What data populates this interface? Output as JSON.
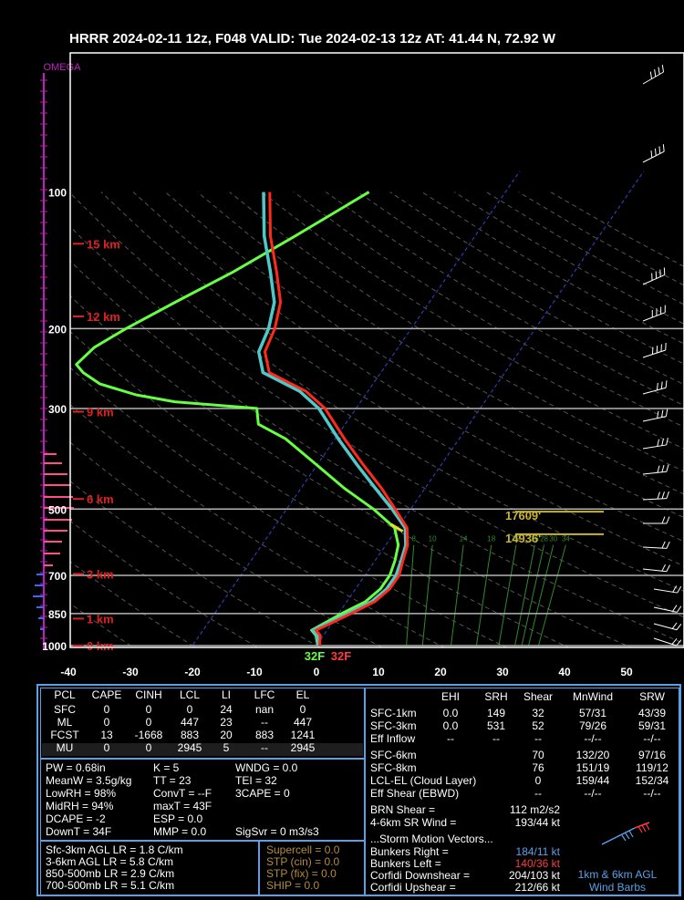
{
  "title": "HRRR 2024-02-11 12z, F048  VALID: Tue 2024-02-13 12z  AT: 41.44 N, 72.92 W",
  "chart_data": {
    "type": "skew-t",
    "omega_label": "OMEGA",
    "pressure_ticks": [
      100,
      200,
      300,
      500,
      700,
      850,
      1000
    ],
    "temp_ticks": [
      -40,
      -30,
      -20,
      -10,
      0,
      10,
      20,
      30,
      40,
      50
    ],
    "height_labels": [
      "15 km",
      "12 km",
      "9 km",
      "6 km",
      "3 km",
      "1 km",
      "0 km"
    ],
    "height_pressures": [
      130,
      188,
      305,
      475,
      695,
      872,
      1000
    ],
    "temperature": [
      [
        1000,
        0.5
      ],
      [
        950,
        -0.5
      ],
      [
        925,
        -1.8
      ],
      [
        900,
        -0.5
      ],
      [
        850,
        2.0
      ],
      [
        800,
        4.5
      ],
      [
        750,
        5.5
      ],
      [
        700,
        5.5
      ],
      [
        650,
        4.5
      ],
      [
        600,
        3.5
      ],
      [
        550,
        1.5
      ],
      [
        500,
        -2.5
      ],
      [
        450,
        -7
      ],
      [
        400,
        -12.5
      ],
      [
        350,
        -18.5
      ],
      [
        300,
        -25
      ],
      [
        275,
        -30
      ],
      [
        250,
        -38
      ],
      [
        225,
        -41
      ],
      [
        200,
        -42
      ],
      [
        175,
        -44
      ],
      [
        150,
        -48
      ],
      [
        125,
        -53
      ],
      [
        100,
        -58
      ]
    ],
    "dewpoint": [
      [
        1000,
        0.3
      ],
      [
        950,
        -1.0
      ],
      [
        925,
        -2.3
      ],
      [
        900,
        -1.0
      ],
      [
        850,
        1.5
      ],
      [
        800,
        4.0
      ],
      [
        750,
        5.0
      ],
      [
        700,
        5.0
      ],
      [
        650,
        4.2
      ],
      [
        600,
        3.2
      ],
      [
        550,
        1.2
      ],
      [
        500,
        -3
      ],
      [
        450,
        -8
      ],
      [
        400,
        -13.5
      ],
      [
        350,
        -19.5
      ],
      [
        300,
        -26
      ],
      [
        275,
        -31
      ],
      [
        250,
        -39
      ],
      [
        225,
        -42
      ],
      [
        200,
        -43
      ],
      [
        175,
        -45
      ],
      [
        150,
        -49
      ],
      [
        125,
        -54
      ],
      [
        100,
        -59
      ]
    ],
    "wetbulb": [
      [
        1000,
        0.2
      ],
      [
        950,
        -1.2
      ],
      [
        925,
        -2.5
      ],
      [
        900,
        -1.5
      ],
      [
        850,
        0.5
      ],
      [
        800,
        3.0
      ],
      [
        750,
        4.0
      ],
      [
        700,
        4.0
      ],
      [
        650,
        3.2
      ],
      [
        600,
        2.0
      ],
      [
        550,
        -0.5
      ],
      [
        500,
        -6
      ],
      [
        450,
        -13
      ],
      [
        400,
        -20
      ],
      [
        350,
        -28
      ],
      [
        325,
        -34
      ],
      [
        300,
        -36
      ],
      [
        290,
        -50
      ],
      [
        280,
        -57
      ],
      [
        265,
        -64
      ],
      [
        250,
        -68
      ],
      [
        240,
        -70
      ],
      [
        220,
        -69
      ],
      [
        200,
        -66
      ],
      [
        175,
        -61
      ],
      [
        150,
        -55
      ],
      [
        125,
        -49
      ],
      [
        100,
        -42
      ]
    ],
    "freezing_labels": {
      "wetbulb": "32F",
      "temp": "32F"
    },
    "height_markers": [
      {
        "label": "17609'",
        "p": 502
      },
      {
        "label": "14936'",
        "p": 563
      }
    ],
    "mixing_ratios": [
      "8",
      "10",
      "14",
      "18",
      "22",
      "26",
      "28",
      "30",
      "34"
    ],
    "colors": {
      "temperature": "#ff2a1a",
      "dewpoint": "#50c8c8",
      "wetbulb": "#66ff44",
      "isobar": "#b4b4b4",
      "dry_adiabat": "#555555",
      "isotherm_zero": "#2c3ea8",
      "height": "#e02020",
      "omega": "#c020c0",
      "yellow": "#c8b432",
      "mixing": "#2f8a2f"
    }
  },
  "params": {
    "headers": [
      "PCL",
      "CAPE",
      "CINH",
      "LCL",
      "LI",
      "LFC",
      "EL"
    ],
    "rows": [
      [
        "SFC",
        "0",
        "0",
        "0",
        "24",
        "nan",
        "0"
      ],
      [
        "ML",
        "0",
        "0",
        "447",
        "23",
        "--",
        "447"
      ],
      [
        "FCST",
        "13",
        "-1668",
        "883",
        "20",
        "883",
        "1241"
      ],
      [
        "MU",
        "0",
        "0",
        "2945",
        "5",
        "--",
        "2945"
      ]
    ],
    "col1": [
      "PW = 0.68in",
      "MeanW = 3.5g/kg",
      "LowRH = 98%",
      "MidRH = 94%",
      "DCAPE = -2",
      "DownT = 34F"
    ],
    "col2": [
      "K = 5",
      "TT = 23",
      "ConvT = --F",
      "maxT = 43F",
      "ESP = 0.0",
      "MMP = 0.0"
    ],
    "col3": [
      "WNDG = 0.0",
      "TEI = 32",
      "3CAPE = 0",
      "",
      "",
      "SigSvr = 0 m3/s3"
    ],
    "lapse": [
      "Sfc-3km AGL LR = 1.8 C/km",
      "3-6km AGL LR = 5.8 C/km",
      "850-500mb LR = 2.9 C/km",
      "700-500mb LR = 5.1 C/km"
    ],
    "indices": [
      "Supercell = 0.0",
      "STP (cin) = 0.0",
      "STP (fix) = 0.0",
      "SHIP = 0.0"
    ]
  },
  "kinematics": {
    "headers": [
      "EHI",
      "SRH",
      "Shear",
      "MnWind",
      "SRW"
    ],
    "rows": [
      [
        "SFC-1km",
        "0.0",
        "149",
        "32",
        "57/31",
        "43/39"
      ],
      [
        "SFC-3km",
        "0.0",
        "531",
        "52",
        "79/26",
        "59/31"
      ],
      [
        "Eff Inflow",
        "--",
        "--",
        "--",
        "--/--",
        "--/--"
      ],
      [
        "SFC-6km",
        "",
        "",
        "70",
        "132/20",
        "97/16"
      ],
      [
        "SFC-8km",
        "",
        "",
        "76",
        "151/19",
        "119/12"
      ],
      [
        "LCL-EL (Cloud Layer)",
        "",
        "",
        "0",
        "159/44",
        "152/34"
      ],
      [
        "Eff Shear (EBWD)",
        "",
        "",
        "--",
        "--/--",
        "--/--"
      ]
    ],
    "brn_label": "BRN Shear =",
    "brn_value": "112 m2/s2",
    "srwind_label": "4-6km SR Wind =",
    "srwind_value": "193/44 kt",
    "storm_title": "...Storm Motion Vectors...",
    "storm": [
      {
        "label": "Bunkers Right =",
        "value": "184/11 kt"
      },
      {
        "label": "Bunkers Left =",
        "value": "140/36 kt"
      },
      {
        "label": "Corfidi Downshear =",
        "value": "204/103 kt"
      },
      {
        "label": "Corfidi Upshear =",
        "value": "212/66 kt"
      }
    ],
    "barb_label_1": "1km & 6km AGL",
    "barb_label_2": "Wind Barbs"
  }
}
